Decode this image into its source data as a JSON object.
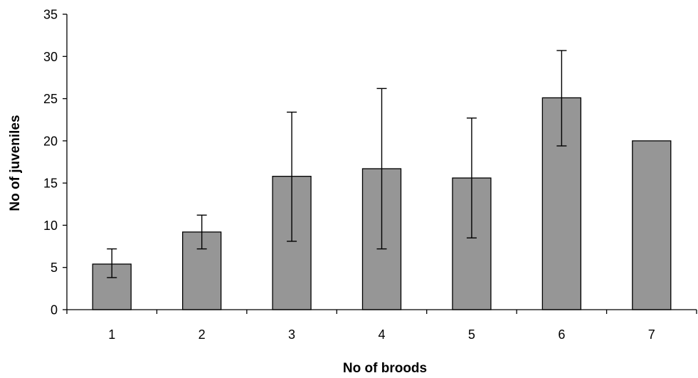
{
  "chart_data": {
    "type": "bar",
    "title": "",
    "xlabel": "No of broods",
    "ylabel": "No of juveniles",
    "ylim": [
      0,
      35
    ],
    "yticks": [
      0,
      5,
      10,
      15,
      20,
      25,
      30,
      35
    ],
    "categories": [
      "1",
      "2",
      "3",
      "4",
      "5",
      "6",
      "7"
    ],
    "values": [
      5.4,
      9.2,
      15.8,
      16.7,
      15.6,
      25.1,
      20.0
    ],
    "error_low": [
      3.8,
      7.2,
      8.1,
      7.2,
      8.5,
      19.4,
      null
    ],
    "error_high": [
      7.2,
      11.2,
      23.4,
      26.2,
      22.7,
      30.7,
      null
    ],
    "bar_color": "#969696",
    "bar_edge_color": "#000000",
    "grid": false,
    "legend": "none"
  }
}
